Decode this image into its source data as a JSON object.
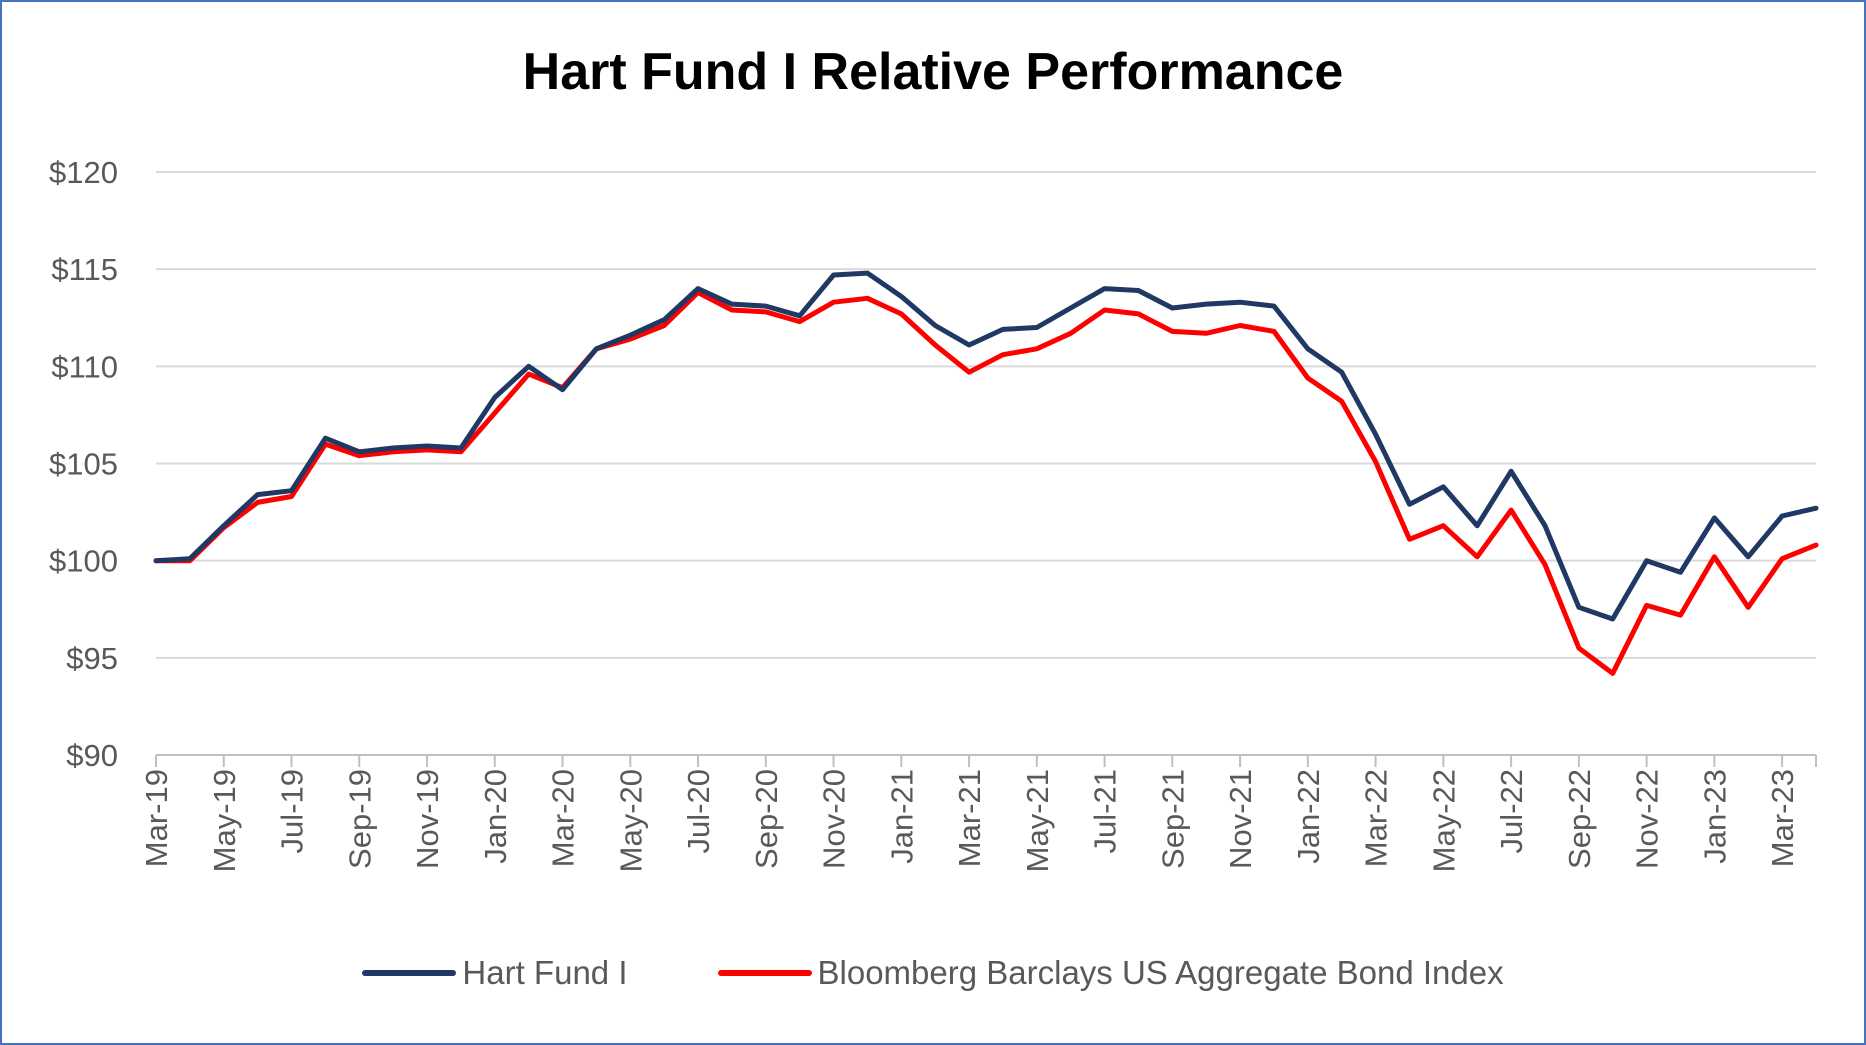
{
  "chart_data": {
    "type": "line",
    "title": "Hart Fund I Relative Performance",
    "xlabel": "",
    "ylabel": "",
    "ylim": [
      90,
      120
    ],
    "yticks": [
      "$90",
      "$95",
      "$100",
      "$105",
      "$110",
      "$115",
      "$120"
    ],
    "ytick_values": [
      90,
      95,
      100,
      105,
      110,
      115,
      120
    ],
    "grid": true,
    "legend_position": "bottom",
    "x": [
      "Mar-19",
      "Apr-19",
      "May-19",
      "Jun-19",
      "Jul-19",
      "Aug-19",
      "Sep-19",
      "Oct-19",
      "Nov-19",
      "Dec-19",
      "Jan-20",
      "Feb-20",
      "Mar-20",
      "Apr-20",
      "May-20",
      "Jun-20",
      "Jul-20",
      "Aug-20",
      "Sep-20",
      "Oct-20",
      "Nov-20",
      "Dec-20",
      "Jan-21",
      "Feb-21",
      "Mar-21",
      "Apr-21",
      "May-21",
      "Jun-21",
      "Jul-21",
      "Aug-21",
      "Sep-21",
      "Oct-21",
      "Nov-21",
      "Dec-21",
      "Jan-22",
      "Feb-22",
      "Mar-22",
      "Apr-22",
      "May-22",
      "Jun-22",
      "Jul-22",
      "Aug-22",
      "Sep-22",
      "Oct-22",
      "Nov-22",
      "Dec-22",
      "Jan-23",
      "Feb-23",
      "Mar-23",
      "Apr-23"
    ],
    "xtick_labels": [
      "Mar-19",
      "May-19",
      "Jul-19",
      "Sep-19",
      "Nov-19",
      "Jan-20",
      "Mar-20",
      "May-20",
      "Jul-20",
      "Sep-20",
      "Nov-20",
      "Jan-21",
      "Mar-21",
      "May-21",
      "Jul-21",
      "Sep-21",
      "Nov-21",
      "Jan-22",
      "Mar-22",
      "May-22",
      "Jul-22",
      "Sep-22",
      "Nov-22",
      "Jan-23",
      "Mar-23"
    ],
    "series": [
      {
        "name": "Hart Fund I",
        "color": "#1f3864",
        "values": [
          100,
          100.1,
          101.8,
          103.4,
          103.6,
          106.3,
          105.6,
          105.8,
          105.9,
          105.8,
          108.4,
          110.0,
          108.8,
          110.9,
          111.6,
          112.4,
          114.0,
          113.2,
          113.1,
          112.6,
          114.7,
          114.8,
          113.6,
          112.1,
          111.1,
          111.9,
          112.0,
          113.0,
          114.0,
          113.9,
          113.0,
          113.2,
          113.3,
          113.1,
          110.9,
          109.7,
          106.5,
          102.9,
          103.8,
          101.8,
          104.6,
          101.8,
          97.6,
          97.0,
          100.0,
          99.4,
          102.2,
          100.2,
          102.3,
          102.7
        ]
      },
      {
        "name": "Bloomberg Barclays US Aggregate Bond Index",
        "color": "#ff0000",
        "values": [
          100,
          100,
          101.7,
          103.0,
          103.3,
          106.0,
          105.4,
          105.6,
          105.7,
          105.6,
          107.6,
          109.6,
          108.9,
          110.9,
          111.4,
          112.1,
          113.8,
          112.9,
          112.8,
          112.3,
          113.3,
          113.5,
          112.7,
          111.1,
          109.7,
          110.6,
          110.9,
          111.7,
          112.9,
          112.7,
          111.8,
          111.7,
          112.1,
          111.8,
          109.4,
          108.2,
          105.1,
          101.1,
          101.8,
          100.2,
          102.6,
          99.8,
          95.5,
          94.2,
          97.7,
          97.2,
          100.2,
          97.6,
          100.1,
          100.8
        ]
      }
    ]
  }
}
